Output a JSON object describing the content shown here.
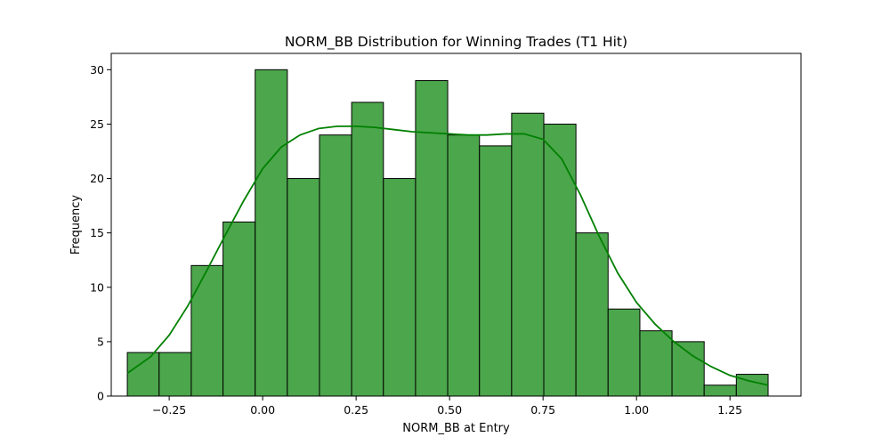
{
  "chart_data": {
    "type": "bar",
    "subtype": "histogram-with-kde",
    "title": "NORM_BB Distribution for Winning Trades (T1 Hit)",
    "xlabel": "NORM_BB at Entry",
    "ylabel": "Frequency",
    "xlim": [
      -0.405,
      1.44
    ],
    "ylim": [
      0,
      31.5
    ],
    "x_ticks": [
      -0.25,
      0.0,
      0.25,
      0.5,
      0.75,
      1.0,
      1.25
    ],
    "x_tick_labels": [
      "−0.25",
      "0.00",
      "0.25",
      "0.50",
      "0.75",
      "1.00",
      "1.25"
    ],
    "y_ticks": [
      0,
      5,
      10,
      15,
      20,
      25,
      30
    ],
    "y_tick_labels": [
      "0",
      "5",
      "10",
      "15",
      "20",
      "25",
      "30"
    ],
    "bin_edges": [
      -0.362,
      -0.277,
      -0.191,
      -0.106,
      -0.02,
      0.066,
      0.152,
      0.238,
      0.323,
      0.409,
      0.495,
      0.58,
      0.666,
      0.752,
      0.838,
      0.924,
      1.009,
      1.095,
      1.181,
      1.267,
      1.352
    ],
    "values": [
      4,
      4,
      12,
      16,
      30,
      20,
      24,
      27,
      20,
      29,
      24,
      23,
      26,
      25,
      15,
      8,
      6,
      5,
      1,
      2
    ],
    "kde": {
      "x": [
        -0.362,
        -0.3,
        -0.25,
        -0.2,
        -0.15,
        -0.1,
        -0.05,
        0.0,
        0.05,
        0.1,
        0.15,
        0.2,
        0.25,
        0.3,
        0.35,
        0.4,
        0.45,
        0.5,
        0.55,
        0.6,
        0.65,
        0.7,
        0.75,
        0.8,
        0.85,
        0.9,
        0.95,
        1.0,
        1.05,
        1.1,
        1.15,
        1.2,
        1.25,
        1.3,
        1.352
      ],
      "y": [
        2.1,
        3.6,
        5.6,
        8.3,
        11.5,
        14.8,
        18.0,
        20.9,
        22.9,
        24.0,
        24.6,
        24.8,
        24.8,
        24.7,
        24.5,
        24.3,
        24.2,
        24.1,
        24.0,
        24.0,
        24.1,
        24.1,
        23.6,
        21.8,
        18.5,
        14.7,
        11.3,
        8.6,
        6.6,
        5.0,
        3.7,
        2.7,
        1.9,
        1.4,
        1.0
      ]
    },
    "colors": {
      "bar_fill": "#4ca64c",
      "bar_edge": "#000000",
      "kde_line": "#008000"
    },
    "grid": false,
    "legend": "none"
  }
}
